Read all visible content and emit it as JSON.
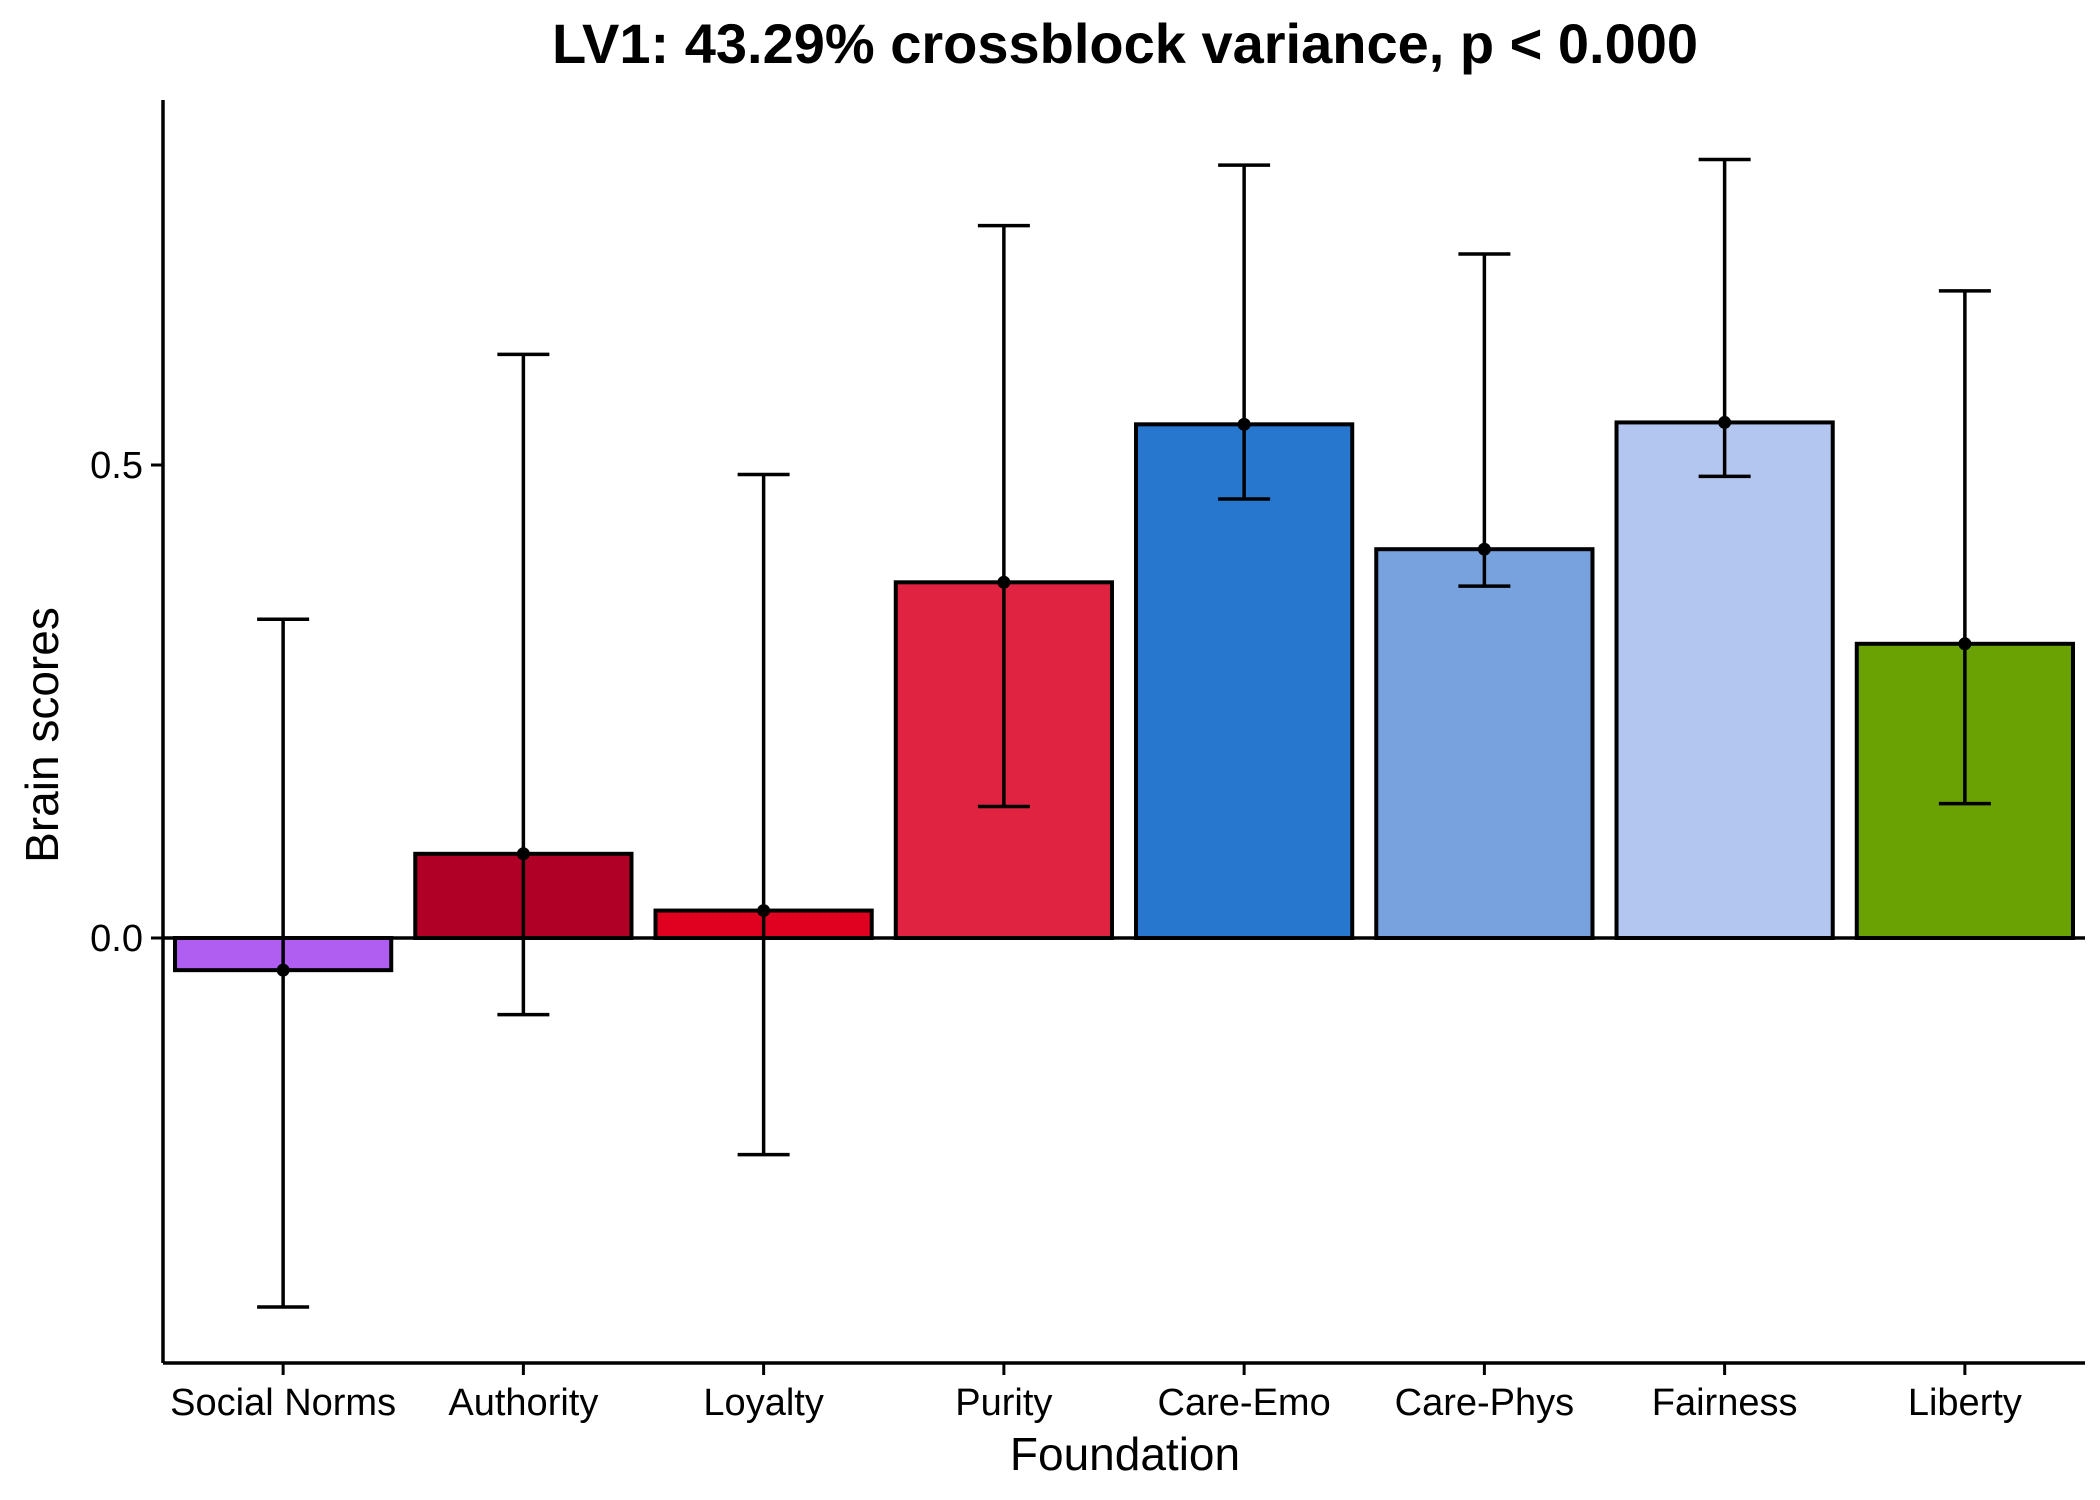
{
  "chart_data": {
    "type": "bar",
    "title": "LV1: 43.29% crossblock variance, p < 0.000",
    "xlabel": "Foundation",
    "ylabel": "Brain scores",
    "categories": [
      "Social Norms",
      "Authority",
      "Loyalty",
      "Purity",
      "Care-Emo",
      "Care-Phys",
      "Fairness",
      "Liberty"
    ],
    "values": [
      -0.034,
      0.089,
      0.029,
      0.376,
      0.543,
      0.411,
      0.545,
      0.311
    ],
    "error_lower": [
      -0.39,
      -0.081,
      -0.229,
      0.139,
      0.464,
      0.372,
      0.488,
      0.142
    ],
    "error_upper": [
      0.337,
      0.617,
      0.49,
      0.753,
      0.817,
      0.723,
      0.823,
      0.684
    ],
    "colors": [
      "#b05ef2",
      "#b10026",
      "#e0001f",
      "#e02340",
      "#2777ce",
      "#77a2dd",
      "#b2c6ef",
      "#6aa103"
    ],
    "ylim": [
      -0.45,
      0.87
    ],
    "yticks": [
      0.0,
      0.5
    ],
    "ytick_labels": [
      "0.0",
      "0.5"
    ],
    "grid": false,
    "legend": "none"
  }
}
